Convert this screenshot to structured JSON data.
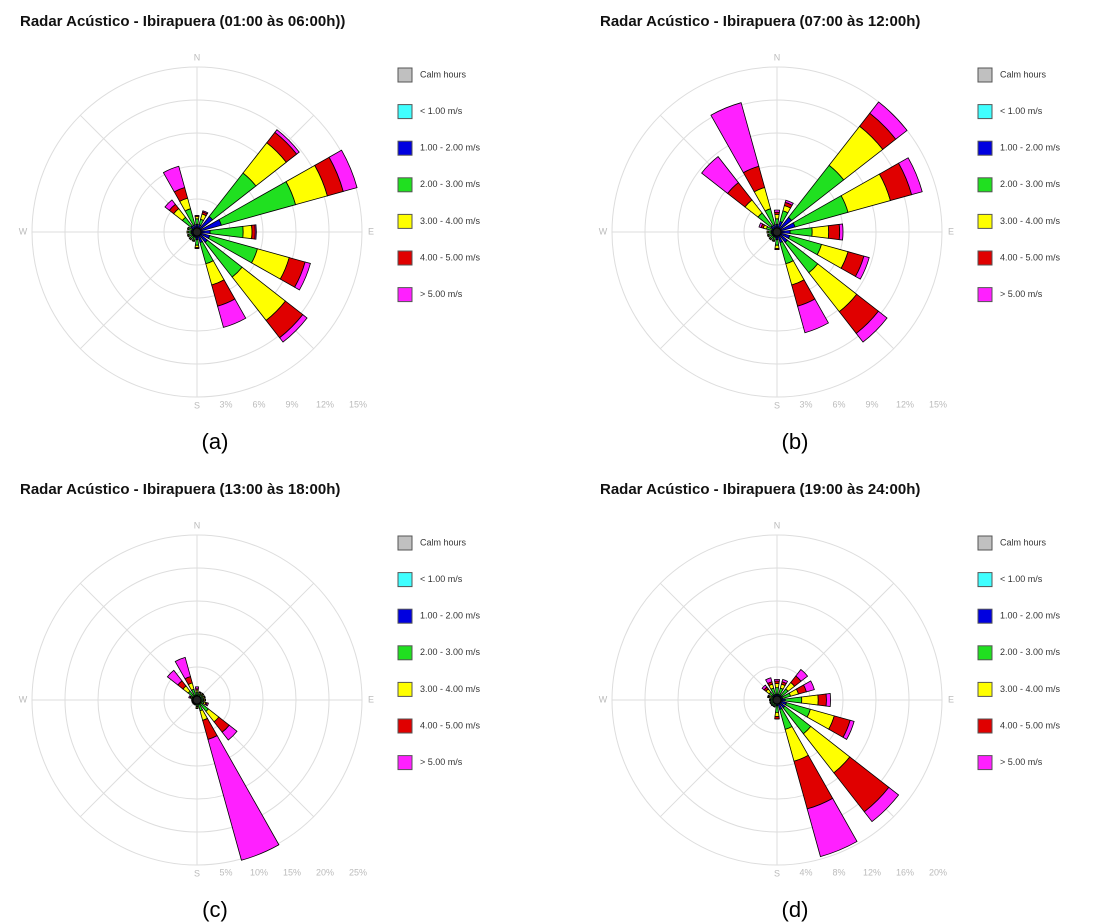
{
  "chart_data": [
    {
      "type": "windrose",
      "title": "Radar Acústico - Ibirapuera (01:00 às 06:00h))",
      "caption": "(a)",
      "categories": [
        "N",
        null,
        null,
        null,
        "E",
        null,
        null,
        null,
        "S",
        null,
        null,
        null,
        "W",
        null,
        null,
        null
      ],
      "rlim": [
        0,
        15
      ],
      "rticks": [
        {
          "value": 3,
          "label": "3%"
        },
        {
          "value": 6,
          "label": "6%"
        },
        {
          "value": 9,
          "label": "9%"
        },
        {
          "value": 12,
          "label": "12%"
        },
        {
          "value": 15,
          "label": "15%"
        }
      ],
      "calm": {
        "name": "Calm hours",
        "color": "#c0c0c0"
      },
      "series": [
        {
          "name": "< 1.00 m/s",
          "color": "#40ffff",
          "values": [
            0.2,
            0.2,
            0.3,
            0.3,
            0.2,
            0.2,
            0.2,
            0.2,
            0.2,
            0.2,
            0.2,
            0.2,
            0.2,
            0.2,
            0.2,
            0.2
          ]
        },
        {
          "name": "1.00 - 2.00 m/s",
          "color": "#0000e0",
          "values": [
            0.5,
            0.5,
            1.5,
            2,
            1,
            1,
            1,
            0.8,
            0.5,
            0.3,
            0.3,
            0.3,
            0.3,
            0.3,
            0.5,
            0.5
          ]
        },
        {
          "name": "2.00 - 3.00 m/s",
          "color": "#20e020",
          "values": [
            0.5,
            0.5,
            5,
            7,
            3,
            4.5,
            4,
            2,
            0.5,
            0.3,
            0.3,
            0.3,
            0.3,
            0.3,
            1,
            1.5
          ]
        },
        {
          "name": "3.00 - 4.00 m/s",
          "color": "#ffff00",
          "values": [
            0.2,
            0.5,
            3.5,
            3,
            0.8,
            3,
            5,
            2,
            0.2,
            0.1,
            0.1,
            0.1,
            0.1,
            0.1,
            1,
            1
          ]
        },
        {
          "name": "4.00 - 5.00 m/s",
          "color": "#e00000",
          "values": [
            0.1,
            0.2,
            1.2,
            1.5,
            0.3,
            1.5,
            2,
            2,
            0.1,
            0,
            0,
            0,
            0,
            0,
            0.5,
            1
          ]
        },
        {
          "name": "> 5.00 m/s",
          "color": "#ff20ff",
          "values": [
            0,
            0.1,
            0.3,
            1.3,
            0.1,
            0.5,
            0.5,
            2,
            0,
            0,
            0,
            0,
            0,
            0,
            0.5,
            2
          ]
        }
      ]
    },
    {
      "type": "windrose",
      "title": "Radar Acústico - Ibirapuera (07:00 às 12:00h)",
      "caption": "(b)",
      "categories": [
        "N",
        null,
        null,
        null,
        "E",
        null,
        null,
        null,
        "S",
        null,
        null,
        null,
        "W",
        null,
        null,
        null
      ],
      "rlim": [
        0,
        15
      ],
      "rticks": [
        {
          "value": 3,
          "label": "3%"
        },
        {
          "value": 6,
          "label": "6%"
        },
        {
          "value": 9,
          "label": "9%"
        },
        {
          "value": 12,
          "label": "12%"
        },
        {
          "value": 15,
          "label": "15%"
        }
      ],
      "calm": {
        "name": "Calm hours",
        "color": "#c0c0c0"
      },
      "series": [
        {
          "name": "< 1.00 m/s",
          "color": "#40ffff",
          "values": [
            0.2,
            0.2,
            0.2,
            0.2,
            0.2,
            0.2,
            0.2,
            0.2,
            0.2,
            0.2,
            0.2,
            0.2,
            0.2,
            0.2,
            0.2,
            0.2
          ]
        },
        {
          "name": "1.00 - 2.00 m/s",
          "color": "#0000e0",
          "values": [
            0.5,
            0.8,
            1.5,
            1.5,
            1,
            1,
            1,
            0.8,
            0.5,
            0.3,
            0.3,
            0.3,
            0.3,
            0.3,
            0.5,
            0.5
          ]
        },
        {
          "name": "2.00 - 3.00 m/s",
          "color": "#20e020",
          "values": [
            0.5,
            1,
            6,
            5,
            2,
            3,
            3.5,
            2,
            0.5,
            0.3,
            0.3,
            0.3,
            0.3,
            0.5,
            1.5,
            1.5
          ]
        },
        {
          "name": "3.00 - 4.00 m/s",
          "color": "#ffff00",
          "values": [
            0.4,
            0.5,
            4.5,
            4,
            1.5,
            2.5,
            4.5,
            2,
            0.3,
            0.1,
            0.1,
            0.1,
            0.1,
            0.3,
            1.5,
            2
          ]
        },
        {
          "name": "4.00 - 5.00 m/s",
          "color": "#e00000",
          "values": [
            0.2,
            0.3,
            1.5,
            2,
            1,
            1.5,
            2.5,
            2,
            0.1,
            0,
            0,
            0,
            0,
            0.2,
            2,
            2
          ]
        },
        {
          "name": "> 5.00 m/s",
          "color": "#ff20ff",
          "values": [
            0.2,
            0.2,
            1.3,
            1,
            0.3,
            0.5,
            1,
            2.5,
            0,
            0,
            0,
            0,
            0,
            0.2,
            3,
            6
          ]
        }
      ]
    },
    {
      "type": "windrose",
      "title": "Radar Acústico - Ibirapuera (13:00 às 18:00h)",
      "caption": "(c)",
      "categories": [
        "N",
        null,
        null,
        null,
        "E",
        null,
        null,
        null,
        "S",
        null,
        null,
        null,
        "W",
        null,
        null,
        null
      ],
      "rlim": [
        0,
        25
      ],
      "rticks": [
        {
          "value": 5,
          "label": "5%"
        },
        {
          "value": 10,
          "label": "10%"
        },
        {
          "value": 15,
          "label": "15%"
        },
        {
          "value": 20,
          "label": "20%"
        },
        {
          "value": 25,
          "label": "25%"
        }
      ],
      "calm": {
        "name": "Calm hours",
        "color": "#c0c0c0"
      },
      "series": [
        {
          "name": "< 1.00 m/s",
          "color": "#40ffff",
          "values": [
            0.2,
            0.2,
            0.2,
            0.2,
            0.2,
            0.2,
            0.2,
            0.2,
            0.2,
            0.2,
            0.2,
            0.2,
            0.2,
            0.2,
            0.2,
            0.2
          ]
        },
        {
          "name": "1.00 - 2.00 m/s",
          "color": "#0000e0",
          "values": [
            0.5,
            0.4,
            0.4,
            0.4,
            0.4,
            0.4,
            0.5,
            0.5,
            0.4,
            0.3,
            0.3,
            0.3,
            0.3,
            0.3,
            0.5,
            0.5
          ]
        },
        {
          "name": "2.00 - 3.00 m/s",
          "color": "#20e020",
          "values": [
            0.5,
            0.4,
            0.4,
            0.4,
            0.4,
            0.5,
            1.5,
            1,
            0.4,
            0.2,
            0.2,
            0.2,
            0.2,
            0.3,
            1,
            1
          ]
        },
        {
          "name": "3.00 - 4.00 m/s",
          "color": "#ffff00",
          "values": [
            0.3,
            0.2,
            0.2,
            0.2,
            0.2,
            0.3,
            2,
            1.5,
            0.2,
            0.1,
            0.1,
            0.1,
            0.1,
            0.2,
            1,
            1
          ]
        },
        {
          "name": "4.00 - 5.00 m/s",
          "color": "#e00000",
          "values": [
            0.2,
            0.1,
            0.1,
            0.1,
            0.1,
            0.2,
            2,
            3,
            0.1,
            0,
            0,
            0,
            0,
            0.1,
            1,
            1
          ]
        },
        {
          "name": "> 5.00 m/s",
          "color": "#ff20ff",
          "values": [
            0.3,
            0,
            0,
            0,
            0,
            0.2,
            1.5,
            19,
            0,
            0,
            0,
            0,
            0,
            0.2,
            2,
            3
          ]
        }
      ]
    },
    {
      "type": "windrose",
      "title": "Radar Acústico - Ibirapuera (19:00 às 24:00h)",
      "caption": "(d)",
      "categories": [
        "N",
        null,
        null,
        null,
        "E",
        null,
        null,
        null,
        "S",
        null,
        null,
        null,
        "W",
        null,
        null,
        null
      ],
      "rlim": [
        0,
        20
      ],
      "rticks": [
        {
          "value": 4,
          "label": "4%"
        },
        {
          "value": 8,
          "label": "8%"
        },
        {
          "value": 12,
          "label": "12%"
        },
        {
          "value": 16,
          "label": "16%"
        },
        {
          "value": 20,
          "label": "20%"
        }
      ],
      "calm": {
        "name": "Calm hours",
        "color": "#c0c0c0"
      },
      "series": [
        {
          "name": "< 1.00 m/s",
          "color": "#40ffff",
          "values": [
            0.2,
            0.2,
            0.2,
            0.2,
            0.2,
            0.2,
            0.2,
            0.2,
            0.2,
            0.2,
            0.2,
            0.2,
            0.2,
            0.2,
            0.2,
            0.2
          ]
        },
        {
          "name": "1.00 - 2.00 m/s",
          "color": "#0000e0",
          "values": [
            0.5,
            0.5,
            0.5,
            0.5,
            0.8,
            1,
            1,
            1,
            0.5,
            0.3,
            0.3,
            0.3,
            0.3,
            0.3,
            0.5,
            0.5
          ]
        },
        {
          "name": "2.00 - 3.00 m/s",
          "color": "#20e020",
          "values": [
            0.8,
            0.8,
            1,
            1,
            2,
            3,
            4,
            2.5,
            0.8,
            0.3,
            0.3,
            0.3,
            0.3,
            0.3,
            0.5,
            0.8
          ]
        },
        {
          "name": "3.00 - 4.00 m/s",
          "color": "#ffff00",
          "values": [
            0.5,
            0.5,
            1,
            1,
            2,
            3,
            6,
            4,
            0.5,
            0.1,
            0.1,
            0.1,
            0.1,
            0.2,
            0.5,
            0.5
          ]
        },
        {
          "name": "4.00 - 5.00 m/s",
          "color": "#e00000",
          "values": [
            0.3,
            0.3,
            1,
            1,
            1,
            2,
            6,
            6,
            0.3,
            0,
            0,
            0,
            0,
            0.1,
            0.3,
            0.3
          ]
        },
        {
          "name": "> 5.00 m/s",
          "color": "#ff20ff",
          "values": [
            0.2,
            0.3,
            1,
            1,
            0.5,
            0.5,
            1.5,
            6,
            0,
            0,
            0,
            0,
            0,
            0.1,
            0.3,
            0.5
          ]
        }
      ]
    }
  ]
}
